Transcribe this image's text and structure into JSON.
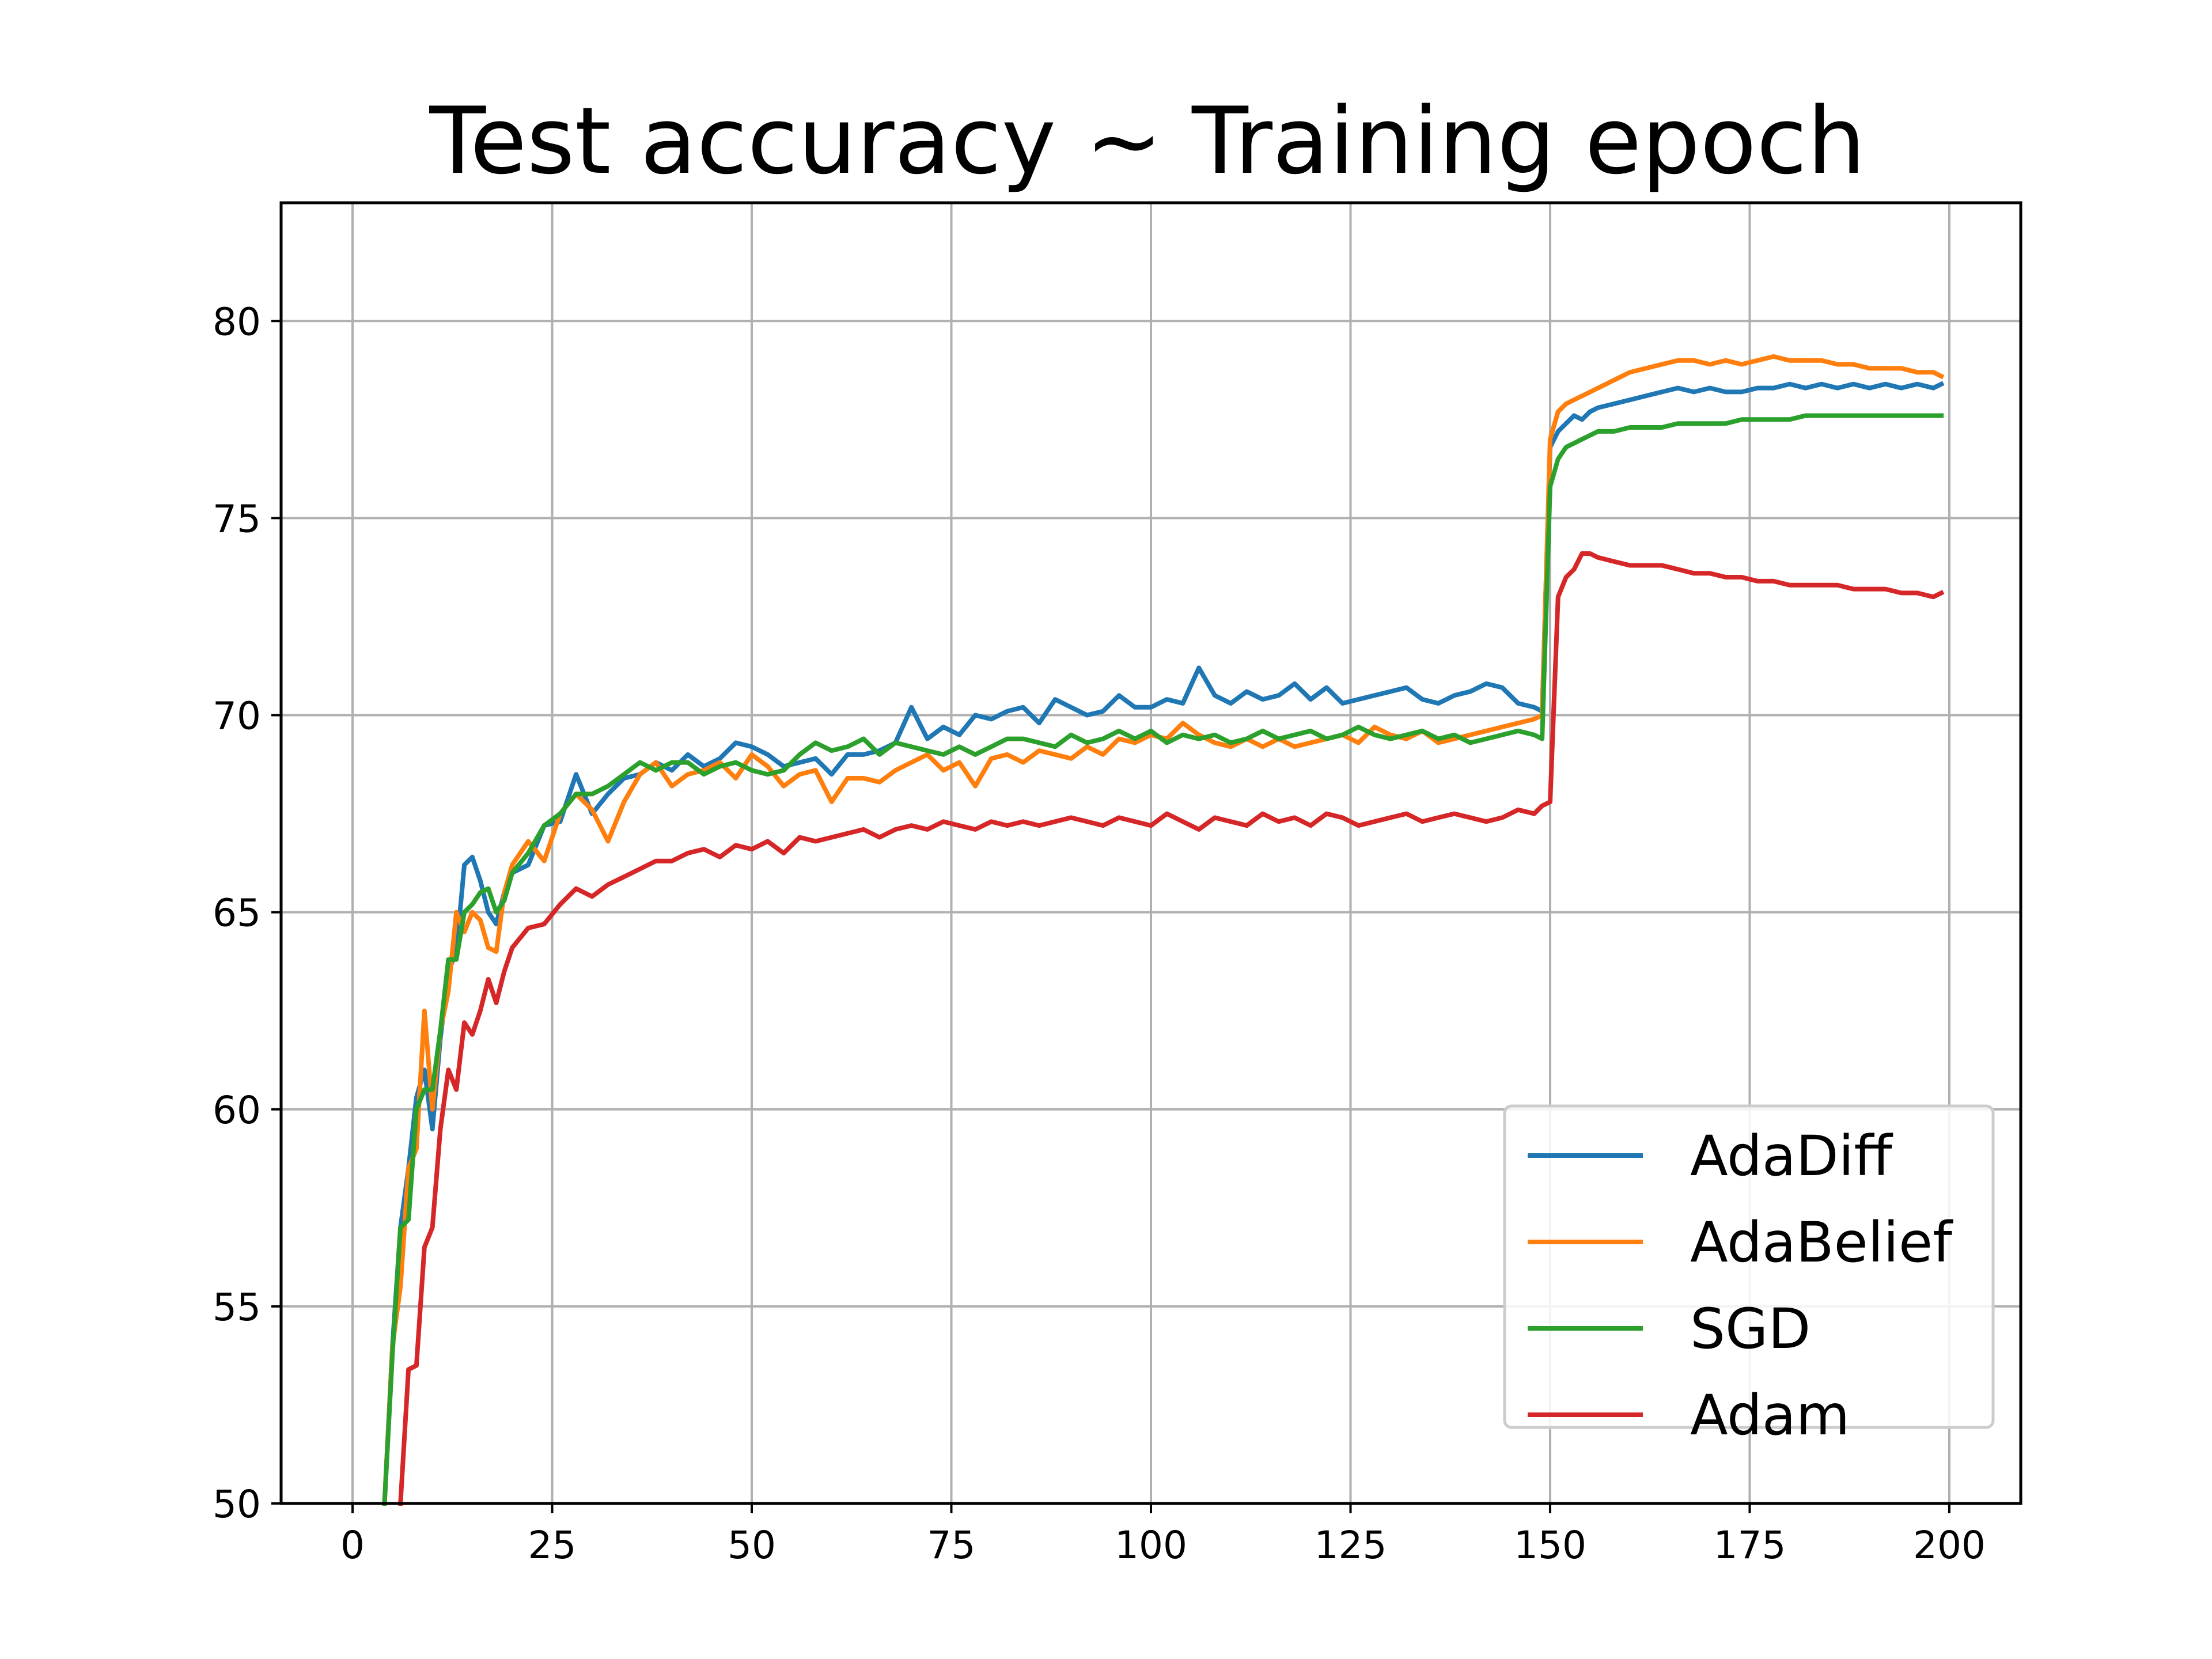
{
  "chart_data": {
    "type": "line",
    "title": "Test accuracy ~ Training epoch",
    "xlabel": "",
    "ylabel": "",
    "xlim": [
      -8.95,
      208.95
    ],
    "ylim": [
      50,
      83
    ],
    "xticks": [
      0,
      25,
      50,
      75,
      100,
      125,
      150,
      175,
      200
    ],
    "yticks": [
      50,
      55,
      60,
      65,
      70,
      75,
      80
    ],
    "grid": true,
    "legend_position": "lower-right",
    "series": [
      {
        "name": "AdaDiff",
        "color": "#1f77b4",
        "x": [
          4,
          5,
          6,
          7,
          8,
          9,
          10,
          11,
          12,
          13,
          14,
          15,
          16,
          17,
          18,
          19,
          20,
          22,
          24,
          26,
          28,
          30,
          32,
          34,
          36,
          38,
          40,
          42,
          44,
          46,
          48,
          50,
          52,
          54,
          56,
          58,
          60,
          62,
          64,
          66,
          68,
          70,
          72,
          74,
          76,
          78,
          80,
          82,
          84,
          86,
          88,
          90,
          92,
          94,
          96,
          98,
          100,
          102,
          104,
          106,
          108,
          110,
          112,
          114,
          116,
          118,
          120,
          122,
          124,
          126,
          128,
          130,
          132,
          134,
          136,
          138,
          140,
          142,
          144,
          146,
          148,
          149,
          150,
          151,
          152,
          153,
          154,
          155,
          156,
          158,
          160,
          162,
          164,
          166,
          168,
          170,
          172,
          174,
          176,
          178,
          180,
          182,
          184,
          186,
          188,
          190,
          192,
          194,
          196,
          198,
          199
        ],
        "y": [
          50,
          54,
          57,
          58.5,
          60.3,
          61,
          59.5,
          61.8,
          63.5,
          64,
          66.2,
          66.4,
          65.8,
          65,
          64.7,
          65.5,
          66,
          66.2,
          67.2,
          67.3,
          68.5,
          67.5,
          68,
          68.4,
          68.5,
          68.8,
          68.6,
          69,
          68.7,
          68.9,
          69.3,
          69.2,
          69,
          68.7,
          68.8,
          68.9,
          68.5,
          69,
          69,
          69.1,
          69.3,
          70.2,
          69.4,
          69.7,
          69.5,
          70,
          69.9,
          70.1,
          70.2,
          69.8,
          70.4,
          70.2,
          70,
          70.1,
          70.5,
          70.2,
          70.2,
          70.4,
          70.3,
          71.2,
          70.5,
          70.3,
          70.6,
          70.4,
          70.5,
          70.8,
          70.4,
          70.7,
          70.3,
          70.4,
          70.5,
          70.6,
          70.7,
          70.4,
          70.3,
          70.5,
          70.6,
          70.8,
          70.7,
          70.3,
          70.2,
          70.1,
          76.8,
          77.2,
          77.4,
          77.6,
          77.5,
          77.7,
          77.8,
          77.9,
          78,
          78.1,
          78.2,
          78.3,
          78.2,
          78.3,
          78.2,
          78.2,
          78.3,
          78.3,
          78.4,
          78.3,
          78.4,
          78.3,
          78.4,
          78.3,
          78.4,
          78.3,
          78.4,
          78.3,
          78.4
        ]
      },
      {
        "name": "AdaBelief",
        "color": "#ff7f0e",
        "x": [
          4,
          5,
          6,
          7,
          8,
          9,
          10,
          11,
          12,
          13,
          14,
          15,
          16,
          17,
          18,
          19,
          20,
          22,
          24,
          26,
          28,
          30,
          32,
          34,
          36,
          38,
          40,
          42,
          44,
          46,
          48,
          50,
          52,
          54,
          56,
          58,
          60,
          62,
          64,
          66,
          68,
          70,
          72,
          74,
          76,
          78,
          80,
          82,
          84,
          86,
          88,
          90,
          92,
          94,
          96,
          98,
          100,
          102,
          104,
          106,
          108,
          110,
          112,
          114,
          116,
          118,
          120,
          122,
          124,
          126,
          128,
          130,
          132,
          134,
          136,
          138,
          140,
          142,
          144,
          146,
          148,
          149,
          150,
          151,
          152,
          153,
          154,
          155,
          156,
          158,
          160,
          162,
          164,
          166,
          168,
          170,
          172,
          174,
          176,
          178,
          180,
          182,
          184,
          186,
          188,
          190,
          192,
          194,
          196,
          198,
          199
        ],
        "y": [
          50,
          54,
          55.5,
          58.5,
          59,
          62.5,
          60,
          62,
          63,
          65,
          64.5,
          65,
          64.8,
          64.1,
          64,
          65.5,
          66.2,
          66.8,
          66.3,
          67.5,
          68,
          67.6,
          66.8,
          67.8,
          68.5,
          68.8,
          68.2,
          68.5,
          68.6,
          68.8,
          68.4,
          69,
          68.7,
          68.2,
          68.5,
          68.6,
          67.8,
          68.4,
          68.4,
          68.3,
          68.6,
          68.8,
          69,
          68.6,
          68.8,
          68.2,
          68.9,
          69,
          68.8,
          69.1,
          69,
          68.9,
          69.2,
          69,
          69.4,
          69.3,
          69.5,
          69.4,
          69.8,
          69.5,
          69.3,
          69.2,
          69.4,
          69.2,
          69.4,
          69.2,
          69.3,
          69.4,
          69.5,
          69.3,
          69.7,
          69.5,
          69.4,
          69.6,
          69.3,
          69.4,
          69.5,
          69.6,
          69.7,
          69.8,
          69.9,
          70,
          77,
          77.7,
          77.9,
          78,
          78.1,
          78.2,
          78.3,
          78.5,
          78.7,
          78.8,
          78.9,
          79,
          79,
          78.9,
          79,
          78.9,
          79,
          79.1,
          79,
          79,
          79,
          78.9,
          78.9,
          78.8,
          78.8,
          78.8,
          78.7,
          78.7,
          78.6
        ]
      },
      {
        "name": "SGD",
        "color": "#2ca02c",
        "x": [
          4,
          5,
          6,
          7,
          8,
          9,
          10,
          11,
          12,
          13,
          14,
          15,
          16,
          17,
          18,
          19,
          20,
          22,
          24,
          26,
          28,
          30,
          32,
          34,
          36,
          38,
          40,
          42,
          44,
          46,
          48,
          50,
          52,
          54,
          56,
          58,
          60,
          62,
          64,
          66,
          68,
          70,
          72,
          74,
          76,
          78,
          80,
          82,
          84,
          86,
          88,
          90,
          92,
          94,
          96,
          98,
          100,
          102,
          104,
          106,
          108,
          110,
          112,
          114,
          116,
          118,
          120,
          122,
          124,
          126,
          128,
          130,
          132,
          134,
          136,
          138,
          140,
          142,
          144,
          146,
          148,
          149,
          150,
          151,
          152,
          153,
          154,
          155,
          156,
          158,
          160,
          162,
          164,
          166,
          168,
          170,
          172,
          174,
          176,
          178,
          180,
          182,
          184,
          186,
          188,
          190,
          192,
          194,
          196,
          198,
          199
        ],
        "y": [
          50,
          53.8,
          57,
          57.2,
          60,
          60.5,
          60.5,
          62,
          63.8,
          63.8,
          65,
          65.2,
          65.5,
          65.6,
          65,
          65.3,
          66,
          66.5,
          67.2,
          67.5,
          68,
          68,
          68.2,
          68.5,
          68.8,
          68.6,
          68.8,
          68.8,
          68.5,
          68.7,
          68.8,
          68.6,
          68.5,
          68.6,
          69,
          69.3,
          69.1,
          69.2,
          69.4,
          69,
          69.3,
          69.2,
          69.1,
          69,
          69.2,
          69,
          69.2,
          69.4,
          69.4,
          69.3,
          69.2,
          69.5,
          69.3,
          69.4,
          69.6,
          69.4,
          69.6,
          69.3,
          69.5,
          69.4,
          69.5,
          69.3,
          69.4,
          69.6,
          69.4,
          69.5,
          69.6,
          69.4,
          69.5,
          69.7,
          69.5,
          69.4,
          69.5,
          69.6,
          69.4,
          69.5,
          69.3,
          69.4,
          69.5,
          69.6,
          69.5,
          69.4,
          75.8,
          76.5,
          76.8,
          76.9,
          77,
          77.1,
          77.2,
          77.2,
          77.3,
          77.3,
          77.3,
          77.4,
          77.4,
          77.4,
          77.4,
          77.5,
          77.5,
          77.5,
          77.5,
          77.6,
          77.6,
          77.6,
          77.6,
          77.6,
          77.6,
          77.6,
          77.6,
          77.6,
          77.6
        ]
      },
      {
        "name": "Adam",
        "color": "#d62728",
        "x": [
          6,
          7,
          8,
          9,
          10,
          11,
          12,
          13,
          14,
          15,
          16,
          17,
          18,
          19,
          20,
          22,
          24,
          26,
          28,
          30,
          32,
          34,
          36,
          38,
          40,
          42,
          44,
          46,
          48,
          50,
          52,
          54,
          56,
          58,
          60,
          62,
          64,
          66,
          68,
          70,
          72,
          74,
          76,
          78,
          80,
          82,
          84,
          86,
          88,
          90,
          92,
          94,
          96,
          98,
          100,
          102,
          104,
          106,
          108,
          110,
          112,
          114,
          116,
          118,
          120,
          122,
          124,
          126,
          128,
          130,
          132,
          134,
          136,
          138,
          140,
          142,
          144,
          146,
          148,
          149,
          150,
          151,
          152,
          153,
          154,
          155,
          156,
          158,
          160,
          162,
          164,
          166,
          168,
          170,
          172,
          174,
          176,
          178,
          180,
          182,
          184,
          186,
          188,
          190,
          192,
          194,
          196,
          198,
          199
        ],
        "y": [
          50,
          53.4,
          53.5,
          56.5,
          57,
          59.5,
          61,
          60.5,
          62.2,
          61.9,
          62.5,
          63.3,
          62.7,
          63.5,
          64.1,
          64.6,
          64.7,
          65.2,
          65.6,
          65.4,
          65.7,
          65.9,
          66.1,
          66.3,
          66.3,
          66.5,
          66.6,
          66.4,
          66.7,
          66.6,
          66.8,
          66.5,
          66.9,
          66.8,
          66.9,
          67,
          67.1,
          66.9,
          67.1,
          67.2,
          67.1,
          67.3,
          67.2,
          67.1,
          67.3,
          67.2,
          67.3,
          67.2,
          67.3,
          67.4,
          67.3,
          67.2,
          67.4,
          67.3,
          67.2,
          67.5,
          67.3,
          67.1,
          67.4,
          67.3,
          67.2,
          67.5,
          67.3,
          67.4,
          67.2,
          67.5,
          67.4,
          67.2,
          67.3,
          67.4,
          67.5,
          67.3,
          67.4,
          67.5,
          67.4,
          67.3,
          67.4,
          67.6,
          67.5,
          67.7,
          67.8,
          73,
          73.5,
          73.7,
          74.1,
          74.1,
          74,
          73.9,
          73.8,
          73.8,
          73.8,
          73.7,
          73.6,
          73.6,
          73.5,
          73.5,
          73.4,
          73.4,
          73.3,
          73.3,
          73.3,
          73.3,
          73.2,
          73.2,
          73.2,
          73.1,
          73.1,
          73,
          73.1
        ]
      }
    ]
  }
}
